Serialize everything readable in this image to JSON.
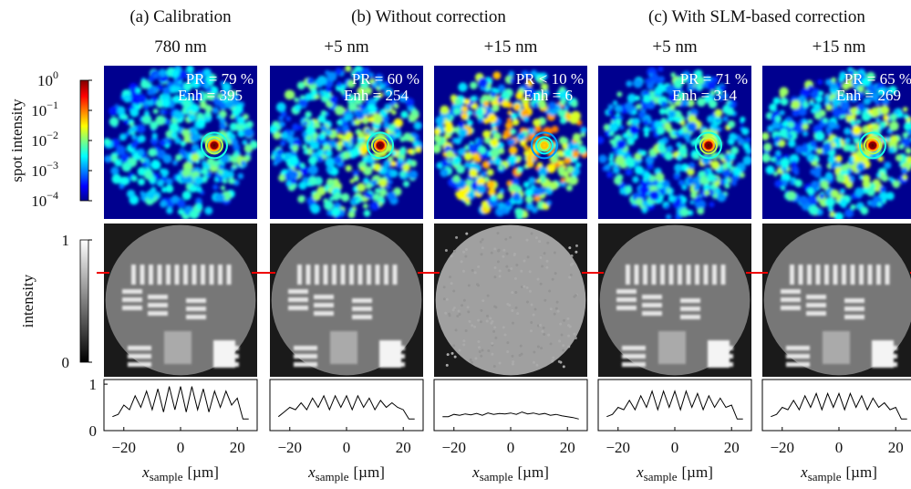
{
  "groups": [
    {
      "label": "(a) Calibration"
    },
    {
      "label": "(b) Without correction"
    },
    {
      "label": "(c) With SLM-based correction"
    }
  ],
  "colorbars": {
    "spot": {
      "label": "spot intensity",
      "ticks": [
        {
          "base": "10",
          "exponent": "0"
        },
        {
          "base": "10",
          "exponent": "−1"
        },
        {
          "base": "10",
          "exponent": "−2"
        },
        {
          "base": "10",
          "exponent": "−3"
        },
        {
          "base": "10",
          "exponent": "−4"
        }
      ]
    },
    "gray": {
      "label": "intensity",
      "lim": [
        0,
        1
      ],
      "ticks": [
        0,
        1
      ]
    }
  },
  "chart_data": [
    {
      "type": "line",
      "title": "780 nm",
      "annotations": [
        "PR = 79 %",
        "Enh = 395"
      ],
      "xlabel": "x",
      "xlabel_sub": "sample",
      "xlabel_unit": "[µm]",
      "xlim": [
        -27,
        27
      ],
      "xticks": [
        {
          "value": -20,
          "label": "−20"
        },
        0,
        20
      ],
      "ylim": [
        0,
        1.1
      ],
      "yticks": [
        0,
        1
      ],
      "x": [
        -24,
        -22,
        -20,
        -18,
        -16,
        -14,
        -12,
        -10,
        -8,
        -6,
        -4,
        -2,
        0,
        2,
        4,
        6,
        8,
        10,
        12,
        14,
        16,
        18,
        20,
        22,
        24
      ],
      "values": [
        0.3,
        0.35,
        0.55,
        0.45,
        0.75,
        0.5,
        0.85,
        0.45,
        0.9,
        0.4,
        0.95,
        0.45,
        0.95,
        0.4,
        0.95,
        0.45,
        0.9,
        0.4,
        0.85,
        0.5,
        0.85,
        0.55,
        0.7,
        0.25,
        0.25
      ]
    },
    {
      "type": "line",
      "title": "+5 nm",
      "annotations": [
        "PR = 60 %",
        "Enh = 254"
      ],
      "xlabel": "x",
      "xlabel_sub": "sample",
      "xlabel_unit": "[µm]",
      "xlim": [
        -27,
        27
      ],
      "xticks": [
        {
          "value": -20,
          "label": "−20"
        },
        0,
        20
      ],
      "ylim": [
        0,
        1.1
      ],
      "x": [
        -24,
        -22,
        -20,
        -18,
        -16,
        -14,
        -12,
        -10,
        -8,
        -6,
        -4,
        -2,
        0,
        2,
        4,
        6,
        8,
        10,
        12,
        14,
        16,
        18,
        20,
        22,
        24
      ],
      "values": [
        0.3,
        0.4,
        0.5,
        0.45,
        0.6,
        0.45,
        0.7,
        0.5,
        0.75,
        0.45,
        0.75,
        0.5,
        0.75,
        0.45,
        0.75,
        0.5,
        0.7,
        0.45,
        0.65,
        0.5,
        0.6,
        0.5,
        0.45,
        0.25,
        0.25
      ]
    },
    {
      "type": "line",
      "title": "+15 nm",
      "annotations": [
        "PR < 10 %",
        "Enh = 6"
      ],
      "xlabel": "x",
      "xlabel_sub": "sample",
      "xlabel_unit": "[µm]",
      "xlim": [
        -27,
        27
      ],
      "xticks": [
        {
          "value": -20,
          "label": "−20"
        },
        0,
        20
      ],
      "ylim": [
        0,
        1.1
      ],
      "x": [
        -24,
        -22,
        -20,
        -18,
        -16,
        -14,
        -12,
        -10,
        -8,
        -6,
        -4,
        -2,
        0,
        2,
        4,
        6,
        8,
        10,
        12,
        14,
        16,
        18,
        20,
        22,
        24
      ],
      "values": [
        0.3,
        0.3,
        0.35,
        0.33,
        0.36,
        0.34,
        0.37,
        0.33,
        0.38,
        0.35,
        0.37,
        0.36,
        0.38,
        0.35,
        0.4,
        0.36,
        0.38,
        0.35,
        0.37,
        0.33,
        0.35,
        0.32,
        0.3,
        0.28,
        0.25
      ]
    },
    {
      "type": "line",
      "title": "+5 nm",
      "annotations": [
        "PR = 71 %",
        "Enh = 314"
      ],
      "xlabel": "x",
      "xlabel_sub": "sample",
      "xlabel_unit": "[µm]",
      "xlim": [
        -27,
        27
      ],
      "xticks": [
        {
          "value": -20,
          "label": "−20"
        },
        0,
        20
      ],
      "ylim": [
        0,
        1.1
      ],
      "x": [
        -24,
        -22,
        -20,
        -18,
        -16,
        -14,
        -12,
        -10,
        -8,
        -6,
        -4,
        -2,
        0,
        2,
        4,
        6,
        8,
        10,
        12,
        14,
        16,
        18,
        20,
        22,
        24
      ],
      "values": [
        0.3,
        0.35,
        0.5,
        0.45,
        0.65,
        0.45,
        0.75,
        0.5,
        0.85,
        0.45,
        0.85,
        0.5,
        0.85,
        0.45,
        0.85,
        0.5,
        0.8,
        0.45,
        0.75,
        0.5,
        0.7,
        0.5,
        0.55,
        0.25,
        0.25
      ]
    },
    {
      "type": "line",
      "title": "+15 nm",
      "annotations": [
        "PR = 65 %",
        "Enh = 269"
      ],
      "xlabel": "x",
      "xlabel_sub": "sample",
      "xlabel_unit": "[µm]",
      "xlim": [
        -27,
        27
      ],
      "xticks": [
        {
          "value": -20,
          "label": "−20"
        },
        0,
        20
      ],
      "ylim": [
        0,
        1.1
      ],
      "x": [
        -24,
        -22,
        -20,
        -18,
        -16,
        -14,
        -12,
        -10,
        -8,
        -6,
        -4,
        -2,
        0,
        2,
        4,
        6,
        8,
        10,
        12,
        14,
        16,
        18,
        20,
        22,
        24
      ],
      "values": [
        0.3,
        0.35,
        0.5,
        0.45,
        0.65,
        0.45,
        0.75,
        0.5,
        0.8,
        0.45,
        0.8,
        0.5,
        0.8,
        0.45,
        0.8,
        0.5,
        0.75,
        0.45,
        0.7,
        0.5,
        0.6,
        0.45,
        0.5,
        0.25,
        0.25
      ]
    }
  ]
}
